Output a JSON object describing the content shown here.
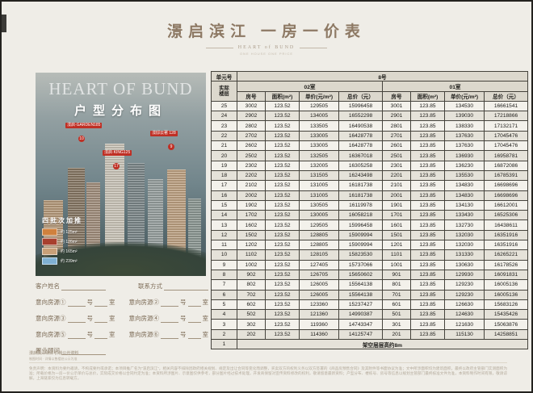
{
  "header": {
    "title": "澋启滨江  一房一价表",
    "subtitle": "HEART of BUND",
    "subtitle2": "ONE HOUSE ONE PRICE"
  },
  "photo": {
    "title_en": "HEART OF BUND",
    "title_cn": "户型分布图",
    "badges": [
      {
        "label": "澋启·GARDEN185",
        "num": "10"
      },
      {
        "label": "澋启·KING125",
        "num": "17"
      },
      {
        "label": "澋邸云著 128",
        "num": "9"
      }
    ],
    "legend": {
      "title": "四批次加推",
      "items": [
        {
          "label": "约 125m²",
          "color": "#d0813d"
        },
        {
          "label": "约 126m²",
          "color": "#a8402e"
        },
        {
          "label": "约 165m²",
          "color": "#c9a078"
        },
        {
          "label": "约 239m²",
          "color": "#7fb0d2"
        }
      ]
    }
  },
  "form": {
    "name_label": "客户姓名",
    "contact_label": "联系方式",
    "intent_labels": [
      "意向房源①",
      "意向房源②",
      "意向房源③",
      "意向房源④",
      "意向房源⑤",
      "意向房源⑥"
    ],
    "unit_suffix": "号",
    "room_suffix": "室",
    "advisor_label": "置业顾问"
  },
  "table": {
    "unit_label": "单元号",
    "unit_value": "8号",
    "floor_label_line1": "实际",
    "floor_label_line2": "楼层",
    "group_labels": [
      "02室",
      "01室"
    ],
    "col_headers": [
      "房号",
      "面积(m²)",
      "单价(元/m²)",
      "总价（元）"
    ],
    "rows": [
      [
        "25",
        "3002",
        "123.52",
        "129505",
        "15996458",
        "3001",
        "123.85",
        "134530",
        "16661541"
      ],
      [
        "24",
        "2902",
        "123.52",
        "134005",
        "16552298",
        "2901",
        "123.85",
        "139030",
        "17218866"
      ],
      [
        "23",
        "2802",
        "123.52",
        "133505",
        "16490538",
        "2801",
        "123.85",
        "138330",
        "17132171"
      ],
      [
        "22",
        "2702",
        "123.52",
        "133005",
        "16428778",
        "2701",
        "123.85",
        "137630",
        "17045476"
      ],
      [
        "21",
        "2602",
        "123.52",
        "133005",
        "16428778",
        "2601",
        "123.85",
        "137630",
        "17045476"
      ],
      [
        "20",
        "2502",
        "123.52",
        "132505",
        "16367018",
        "2501",
        "123.85",
        "136930",
        "16958781"
      ],
      [
        "19",
        "2302",
        "123.52",
        "132005",
        "16305258",
        "2301",
        "123.85",
        "136230",
        "16872086"
      ],
      [
        "18",
        "2202",
        "123.52",
        "131505",
        "16243498",
        "2201",
        "123.85",
        "135530",
        "16785391"
      ],
      [
        "17",
        "2102",
        "123.52",
        "131005",
        "16181738",
        "2101",
        "123.85",
        "134830",
        "16698696"
      ],
      [
        "16",
        "2002",
        "123.52",
        "131005",
        "16181738",
        "2001",
        "123.85",
        "134830",
        "16698696"
      ],
      [
        "15",
        "1902",
        "123.52",
        "130505",
        "16119978",
        "1901",
        "123.85",
        "134130",
        "16612001"
      ],
      [
        "14",
        "1702",
        "123.52",
        "130005",
        "16058218",
        "1701",
        "123.85",
        "133430",
        "16525306"
      ],
      [
        "13",
        "1602",
        "123.52",
        "129505",
        "15996458",
        "1601",
        "123.85",
        "132730",
        "16438611"
      ],
      [
        "12",
        "1502",
        "123.52",
        "128805",
        "15909994",
        "1501",
        "123.85",
        "132030",
        "16351916"
      ],
      [
        "11",
        "1202",
        "123.52",
        "128805",
        "15909994",
        "1201",
        "123.85",
        "132030",
        "16351916"
      ],
      [
        "10",
        "1102",
        "123.52",
        "128105",
        "15823530",
        "1101",
        "123.85",
        "131330",
        "16265221"
      ],
      [
        "9",
        "1002",
        "123.52",
        "127405",
        "15737066",
        "1001",
        "123.85",
        "130630",
        "16178526"
      ],
      [
        "8",
        "902",
        "123.52",
        "126705",
        "15650602",
        "901",
        "123.85",
        "129930",
        "16091831"
      ],
      [
        "7",
        "802",
        "123.52",
        "126005",
        "15564138",
        "801",
        "123.85",
        "129230",
        "16005136"
      ],
      [
        "6",
        "702",
        "123.52",
        "126005",
        "15564138",
        "701",
        "123.85",
        "129230",
        "16005136"
      ],
      [
        "5",
        "602",
        "123.52",
        "123360",
        "15237427",
        "601",
        "123.85",
        "126630",
        "15683126"
      ],
      [
        "4",
        "502",
        "123.52",
        "121360",
        "14990387",
        "501",
        "123.85",
        "124630",
        "15435426"
      ],
      [
        "3",
        "302",
        "123.52",
        "119360",
        "14743347",
        "301",
        "123.85",
        "121630",
        "15063876"
      ],
      [
        "2",
        "202",
        "123.52",
        "114360",
        "14125747",
        "201",
        "123.85",
        "115130",
        "14258851"
      ]
    ],
    "last_row": {
      "floor": "1",
      "note": "架空层层高约8m"
    }
  },
  "fine_print": {
    "line1": "澋启滨江项目 价格公示资料",
    "line2": "制图时间 · 详情以售楼处公示为准",
    "body": "免责声明：本资料为要约邀请，不构成要约或承诺；本项目推广名为“澋启滨江”，相关内容不排除因政府相关规划、规定及出让合同等变化而调整，买卖双方的权利义务以双方签署的《商品房预售合同》及其附件等书面协议为准；文中所涉面积均为建筑面积，最终以政府主管部门实测面积为准；所载价格为一房一价公示单价与总价，实际成交价格以合同约定为准；本资料所涉图片、示意图仅供参考，部分图片经过技术处理，开发商保留对宣传资料修改的权利，敬请留意最新资料；户型分布、楼栋号、房号等信息以规划主管部门最终核准文件为准，本资料制作时间有限，敬请谅解。上海链家仅为信息转载方。"
  }
}
